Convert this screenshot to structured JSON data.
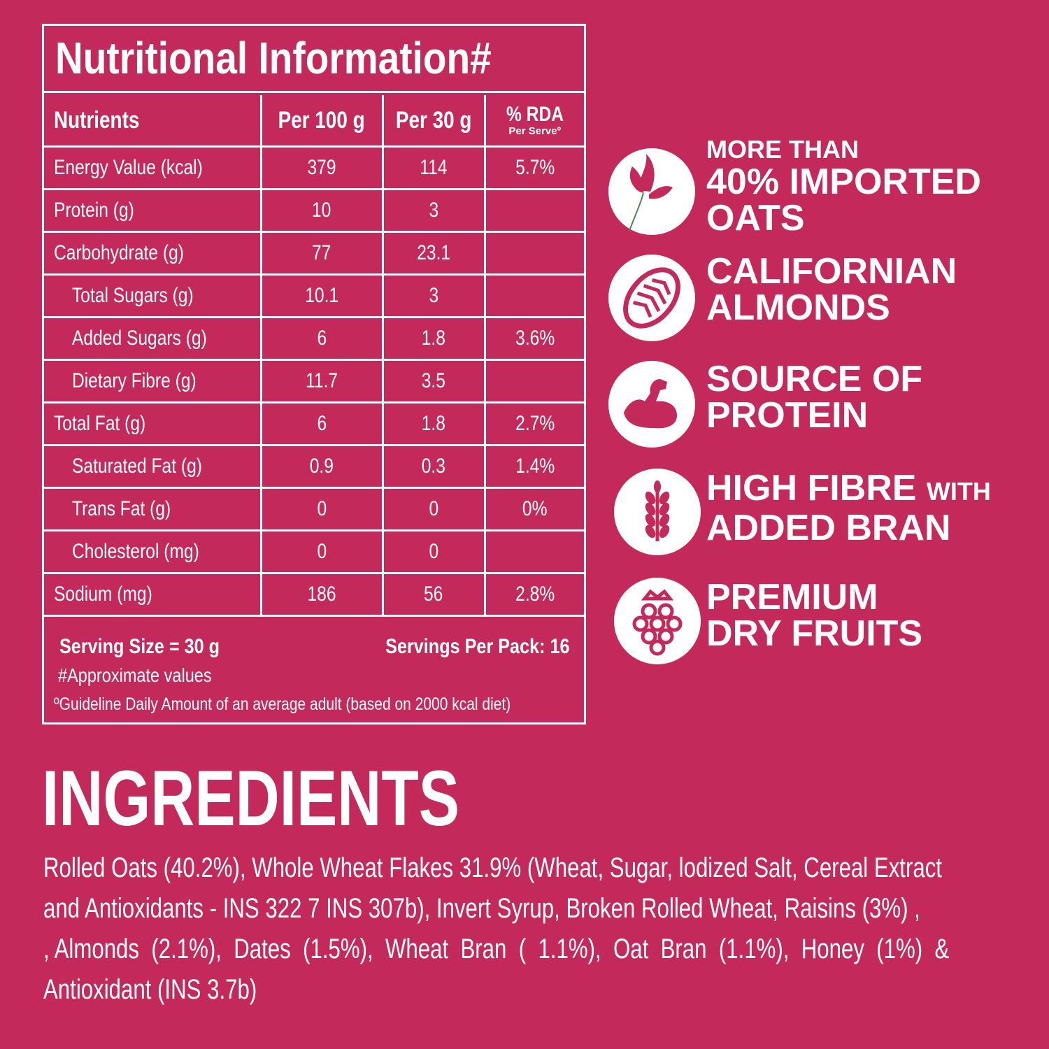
{
  "nutrition": {
    "title": "Nutritional Information#",
    "headers": {
      "nutrients": "Nutrients",
      "per100": "Per 100 g",
      "per30": "Per 30 g",
      "rda": "% RDA",
      "rda_sub": "Per Serveº"
    },
    "rows": [
      {
        "name": "Energy Value (kcal)",
        "per100": "379",
        "per30": "114",
        "rda": "5.7%"
      },
      {
        "name": "Protein (g)",
        "per100": "10",
        "per30": "3",
        "rda": ""
      },
      {
        "name": "Carbohydrate (g)",
        "per100": "77",
        "per30": "23.1",
        "rda": ""
      },
      {
        "name": "Total Sugars (g)",
        "per100": "10.1",
        "per30": "3",
        "rda": ""
      },
      {
        "name": "Added Sugars (g)",
        "per100": "6",
        "per30": "1.8",
        "rda": "3.6%"
      },
      {
        "name": "Dietary Fibre (g)",
        "per100": "11.7",
        "per30": "3.5",
        "rda": ""
      },
      {
        "name": "Total Fat (g)",
        "per100": "6",
        "per30": "1.8",
        "rda": "2.7%"
      },
      {
        "name": "Saturated Fat (g)",
        "per100": "0.9",
        "per30": "0.3",
        "rda": "1.4%"
      },
      {
        "name": "Trans Fat (g)",
        "per100": "0",
        "per30": "0",
        "rda": "0%"
      },
      {
        "name": "Cholesterol (mg)",
        "per100": "0",
        "per30": "0",
        "rda": ""
      },
      {
        "name": "Sodium (mg)",
        "per100": "186",
        "per30": "56",
        "rda": "2.8%"
      }
    ],
    "serving_size": "Serving Size = 30 g",
    "servings_per_pack": "Servings Per Pack: 16",
    "approx_note": "#Approximate values",
    "guideline_note": "ºGuideline Daily Amount of an average adult (based on 2000 kcal diet)"
  },
  "features": [
    {
      "icon": "oat-stalk-icon",
      "line1": "MORE THAN",
      "line2": "40% IMPORTED",
      "line3": "OATS"
    },
    {
      "icon": "almond-icon",
      "line1": "CALIFORNIAN",
      "line2": "ALMONDS"
    },
    {
      "icon": "flexed-arm-icon",
      "line1": "SOURCE OF",
      "line2": "PROTEIN"
    },
    {
      "icon": "wheat-icon",
      "line1a": "HIGH FIBRE",
      "line1b": "WITH",
      "line2": "ADDED BRAN"
    },
    {
      "icon": "raspberry-icon",
      "line1": "PREMIUM",
      "line2": "DRY FRUITS"
    }
  ],
  "ingredients": {
    "title": "INGREDIENTS",
    "lines": [
      "Rolled Oats (40.2%), Whole Wheat Flakes 31.9% (Wheat, Sugar, lodized Salt, Cereal Extract",
      "and Antioxidants - INS 322 7 INS 307b), Invert Syrup, Broken Rolled Wheat, Raisins (3%) ,",
      ", Almonds  (2.1%),  Dates  (1.5%),  Wheat  Bran  (  1.1%),  Oat  Bran  (1.1%),  Honey  (1%)  &",
      "Antioxidant (INS 3.7b)"
    ]
  },
  "colors": {
    "background": "#c3295a",
    "text": "#ffffff"
  }
}
